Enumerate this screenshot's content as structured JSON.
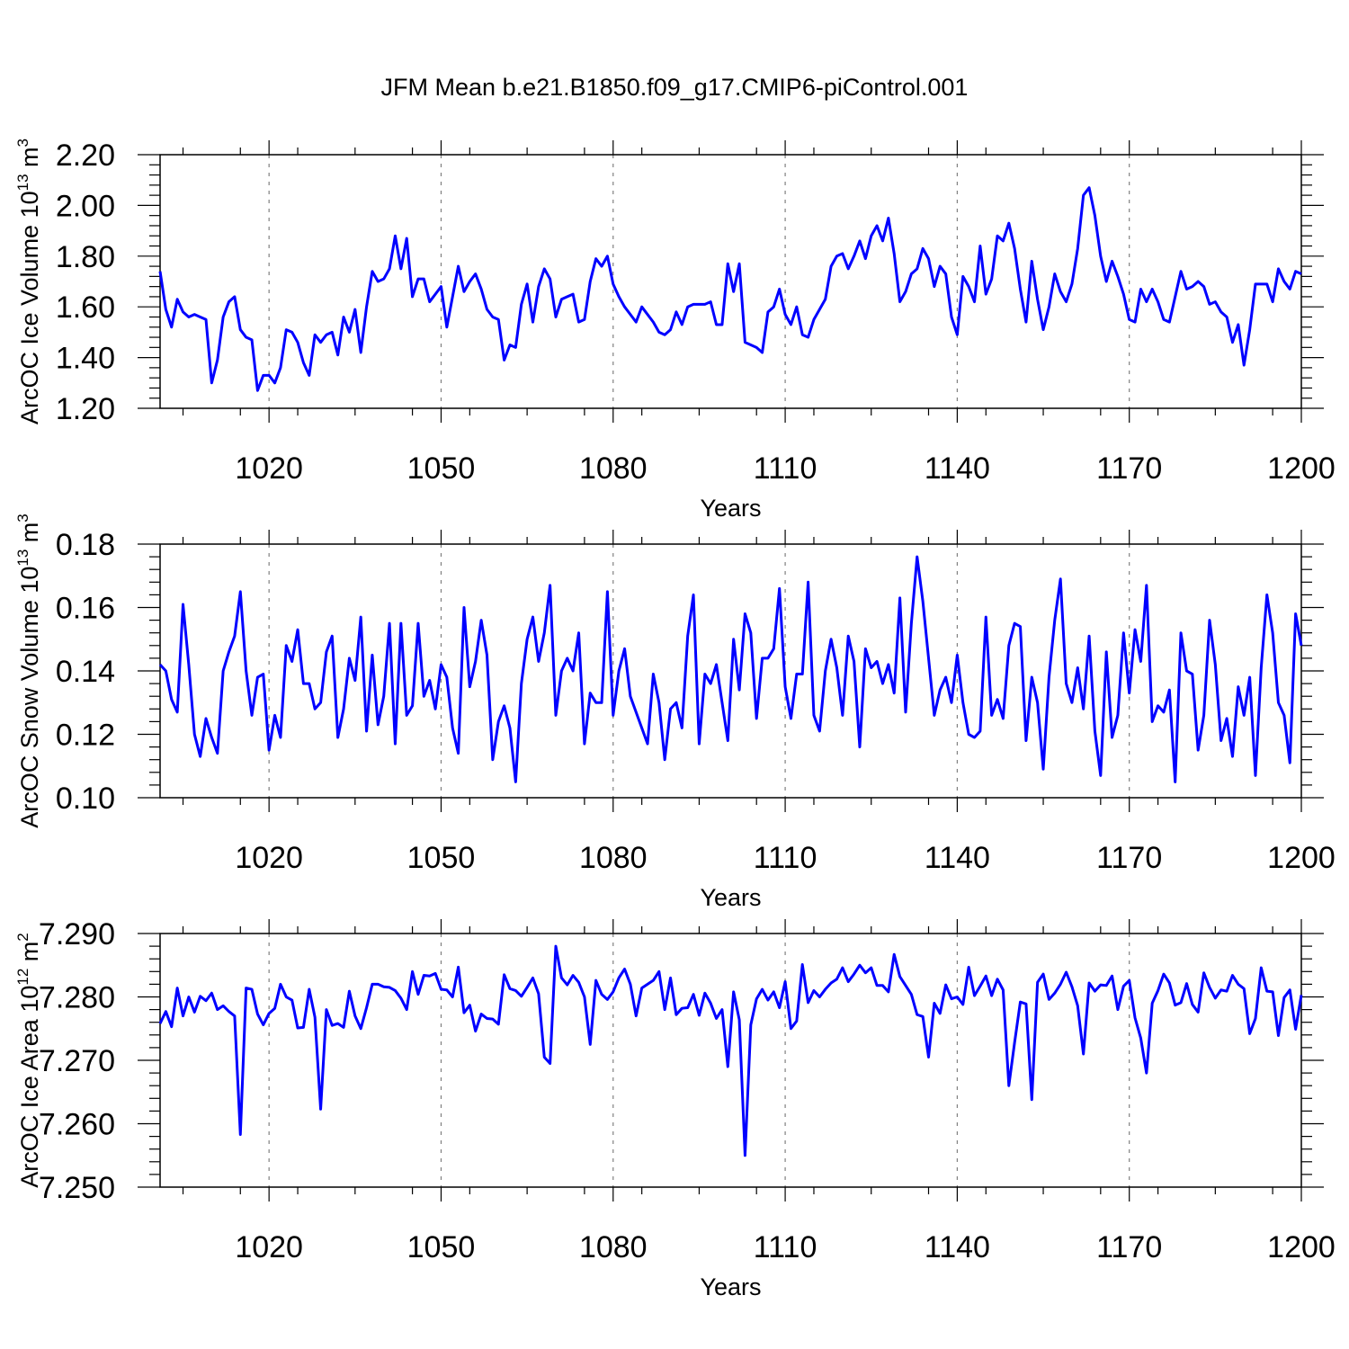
{
  "title": "JFM Mean b.e21.B1850.f09_g17.CMIP6-piControl.001",
  "colors": {
    "line": "#0000ff",
    "grid": "#808080",
    "axis": "#000000"
  },
  "chart_data": [
    {
      "type": "line",
      "xlabel": "Years",
      "ylabel": {
        "text": "ArcOC Ice Volume 10",
        "exp": "13",
        "unit": " m",
        "unit_exp": "3"
      },
      "xlim": [
        1001,
        1200
      ],
      "ylim": [
        1.2,
        2.2
      ],
      "xticks": [
        1020,
        1050,
        1080,
        1110,
        1140,
        1170,
        1200
      ],
      "xtick_labels": [
        "1020",
        "1050",
        "1080",
        "1110",
        "1140",
        "1170",
        "1200"
      ],
      "yticks": [
        1.2,
        1.4,
        1.6,
        1.8,
        2.0,
        2.2
      ],
      "ytick_labels": [
        "1.20",
        "1.40",
        "1.60",
        "1.80",
        "2.00",
        "2.20"
      ],
      "grid": "x-dashed",
      "series": [
        {
          "x_start": 1001,
          "values": [
            1.74,
            1.59,
            1.52,
            1.63,
            1.58,
            1.56,
            1.57,
            1.56,
            1.55,
            1.3,
            1.39,
            1.56,
            1.62,
            1.64,
            1.51,
            1.48,
            1.47,
            1.27,
            1.33,
            1.33,
            1.3,
            1.36,
            1.51,
            1.5,
            1.46,
            1.38,
            1.33,
            1.49,
            1.46,
            1.49,
            1.5,
            1.41,
            1.56,
            1.5,
            1.59,
            1.42,
            1.6,
            1.74,
            1.7,
            1.71,
            1.75,
            1.88,
            1.75,
            1.87,
            1.64,
            1.71,
            1.71,
            1.62,
            1.65,
            1.68,
            1.52,
            1.64,
            1.76,
            1.66,
            1.7,
            1.73,
            1.67,
            1.59,
            1.56,
            1.55,
            1.39,
            1.45,
            1.44,
            1.61,
            1.69,
            1.54,
            1.68,
            1.75,
            1.71,
            1.56,
            1.63,
            1.64,
            1.65,
            1.54,
            1.55,
            1.7,
            1.79,
            1.76,
            1.8,
            1.69,
            1.64,
            1.6,
            1.57,
            1.54,
            1.6,
            1.57,
            1.54,
            1.5,
            1.49,
            1.51,
            1.58,
            1.53,
            1.6,
            1.61,
            1.61,
            1.61,
            1.62,
            1.53,
            1.53,
            1.77,
            1.66,
            1.77,
            1.46,
            1.45,
            1.44,
            1.42,
            1.58,
            1.6,
            1.67,
            1.57,
            1.53,
            1.6,
            1.49,
            1.48,
            1.55,
            1.59,
            1.63,
            1.76,
            1.8,
            1.81,
            1.75,
            1.8,
            1.86,
            1.79,
            1.88,
            1.92,
            1.86,
            1.95,
            1.81,
            1.62,
            1.66,
            1.73,
            1.75,
            1.83,
            1.79,
            1.68,
            1.76,
            1.73,
            1.56,
            1.49,
            1.72,
            1.68,
            1.62,
            1.84,
            1.65,
            1.71,
            1.88,
            1.86,
            1.93,
            1.83,
            1.67,
            1.54,
            1.78,
            1.63,
            1.51,
            1.6,
            1.73,
            1.66,
            1.62,
            1.69,
            1.83,
            2.04,
            2.07,
            1.96,
            1.8,
            1.7,
            1.78,
            1.72,
            1.65,
            1.55,
            1.54,
            1.67,
            1.62,
            1.67,
            1.62,
            1.55,
            1.54,
            1.64,
            1.74,
            1.67,
            1.68,
            1.7,
            1.68,
            1.61,
            1.62,
            1.58,
            1.56,
            1.46,
            1.53,
            1.37,
            1.51,
            1.69,
            1.69,
            1.69,
            1.62,
            1.75,
            1.7,
            1.67,
            1.74,
            1.73
          ]
        }
      ]
    },
    {
      "type": "line",
      "xlabel": "Years",
      "ylabel": {
        "text": "ArcOC Snow Volume 10",
        "exp": "13",
        "unit": " m",
        "unit_exp": "3"
      },
      "xlim": [
        1001,
        1200
      ],
      "ylim": [
        0.1,
        0.18
      ],
      "xticks": [
        1020,
        1050,
        1080,
        1110,
        1140,
        1170,
        1200
      ],
      "xtick_labels": [
        "1020",
        "1050",
        "1080",
        "1110",
        "1140",
        "1170",
        "1200"
      ],
      "yticks": [
        0.1,
        0.12,
        0.14,
        0.16,
        0.18
      ],
      "ytick_labels": [
        "0.10",
        "0.12",
        "0.14",
        "0.16",
        "0.18"
      ],
      "grid": "x-dashed",
      "series": [
        {
          "x_start": 1001,
          "values": [
            0.142,
            0.14,
            0.131,
            0.127,
            0.161,
            0.142,
            0.12,
            0.113,
            0.125,
            0.119,
            0.114,
            0.14,
            0.146,
            0.151,
            0.165,
            0.14,
            0.126,
            0.138,
            0.139,
            0.115,
            0.126,
            0.119,
            0.148,
            0.143,
            0.153,
            0.136,
            0.136,
            0.128,
            0.13,
            0.146,
            0.151,
            0.119,
            0.128,
            0.144,
            0.137,
            0.157,
            0.121,
            0.145,
            0.123,
            0.132,
            0.155,
            0.117,
            0.155,
            0.126,
            0.129,
            0.155,
            0.132,
            0.137,
            0.128,
            0.142,
            0.138,
            0.122,
            0.114,
            0.16,
            0.135,
            0.143,
            0.156,
            0.145,
            0.112,
            0.124,
            0.129,
            0.122,
            0.105,
            0.136,
            0.15,
            0.157,
            0.143,
            0.152,
            0.167,
            0.126,
            0.14,
            0.144,
            0.14,
            0.152,
            0.117,
            0.133,
            0.13,
            0.13,
            0.165,
            0.126,
            0.14,
            0.147,
            0.132,
            0.127,
            0.122,
            0.117,
            0.139,
            0.13,
            0.112,
            0.128,
            0.13,
            0.122,
            0.151,
            0.164,
            0.117,
            0.139,
            0.136,
            0.142,
            0.13,
            0.118,
            0.15,
            0.134,
            0.158,
            0.152,
            0.125,
            0.144,
            0.144,
            0.147,
            0.166,
            0.135,
            0.125,
            0.139,
            0.139,
            0.168,
            0.126,
            0.121,
            0.14,
            0.15,
            0.141,
            0.126,
            0.151,
            0.143,
            0.116,
            0.147,
            0.141,
            0.143,
            0.136,
            0.142,
            0.133,
            0.163,
            0.127,
            0.155,
            0.176,
            0.162,
            0.144,
            0.126,
            0.134,
            0.138,
            0.13,
            0.145,
            0.13,
            0.12,
            0.119,
            0.121,
            0.157,
            0.126,
            0.131,
            0.125,
            0.148,
            0.155,
            0.154,
            0.118,
            0.138,
            0.13,
            0.109,
            0.138,
            0.156,
            0.169,
            0.136,
            0.13,
            0.141,
            0.128,
            0.151,
            0.121,
            0.107,
            0.146,
            0.119,
            0.126,
            0.152,
            0.133,
            0.153,
            0.143,
            0.167,
            0.124,
            0.129,
            0.127,
            0.134,
            0.105,
            0.152,
            0.14,
            0.139,
            0.115,
            0.126,
            0.156,
            0.142,
            0.118,
            0.125,
            0.113,
            0.135,
            0.126,
            0.138,
            0.107,
            0.141,
            0.164,
            0.152,
            0.13,
            0.126,
            0.111,
            0.158,
            0.148
          ]
        }
      ]
    },
    {
      "type": "line",
      "xlabel": "Years",
      "ylabel": {
        "text": "ArcOC Ice Area 10",
        "exp": "12",
        "unit": " m",
        "unit_exp": "2"
      },
      "xlim": [
        1001,
        1200
      ],
      "ylim": [
        7.25,
        7.29
      ],
      "xticks": [
        1020,
        1050,
        1080,
        1110,
        1140,
        1170,
        1200
      ],
      "xtick_labels": [
        "1020",
        "1050",
        "1080",
        "1110",
        "1140",
        "1170",
        "1200"
      ],
      "yticks": [
        7.25,
        7.26,
        7.27,
        7.28,
        7.29
      ],
      "ytick_labels": [
        "7.250",
        "7.260",
        "7.270",
        "7.280",
        "7.290"
      ],
      "grid": "x-dashed",
      "series": [
        {
          "x_start": 1001,
          "values": [
            7.2758,
            7.2777,
            7.2753,
            7.2814,
            7.277,
            7.28,
            7.2776,
            7.2801,
            7.2794,
            7.2806,
            7.278,
            7.2786,
            7.2777,
            7.277,
            7.2583,
            7.2814,
            7.2812,
            7.2773,
            7.2756,
            7.2774,
            7.2782,
            7.282,
            7.28,
            7.2795,
            7.2751,
            7.2752,
            7.2812,
            7.2768,
            7.2623,
            7.278,
            7.2755,
            7.2758,
            7.2752,
            7.2809,
            7.277,
            7.275,
            7.2783,
            7.282,
            7.282,
            7.2816,
            7.2815,
            7.281,
            7.2798,
            7.278,
            7.284,
            7.2804,
            7.2834,
            7.2833,
            7.2837,
            7.2812,
            7.2811,
            7.28,
            7.2847,
            7.2775,
            7.2787,
            7.2746,
            7.2773,
            7.2766,
            7.2765,
            7.2757,
            7.2835,
            7.2813,
            7.281,
            7.2801,
            7.2815,
            7.283,
            7.2805,
            7.2705,
            7.2695,
            7.288,
            7.283,
            7.2819,
            7.2834,
            7.2823,
            7.28,
            7.2725,
            7.2826,
            7.2804,
            7.2796,
            7.2808,
            7.283,
            7.2844,
            7.282,
            7.277,
            7.2814,
            7.282,
            7.2826,
            7.284,
            7.278,
            7.283,
            7.2772,
            7.2782,
            7.2783,
            7.2804,
            7.2771,
            7.2806,
            7.279,
            7.2766,
            7.278,
            7.269,
            7.2808,
            7.2764,
            7.255,
            7.2756,
            7.2797,
            7.2812,
            7.2795,
            7.2808,
            7.2783,
            7.2824,
            7.275,
            7.2762,
            7.2851,
            7.2791,
            7.281,
            7.28,
            7.2812,
            7.2822,
            7.2828,
            7.2846,
            7.2824,
            7.2836,
            7.285,
            7.2838,
            7.2846,
            7.2818,
            7.2818,
            7.2808,
            7.2867,
            7.2832,
            7.2818,
            7.2804,
            7.2772,
            7.2769,
            7.2705,
            7.279,
            7.2774,
            7.2819,
            7.2797,
            7.28,
            7.2788,
            7.2847,
            7.2802,
            7.2817,
            7.2833,
            7.2802,
            7.2828,
            7.2811,
            7.266,
            7.2728,
            7.2792,
            7.2789,
            7.2638,
            7.2823,
            7.2836,
            7.2796,
            7.2806,
            7.282,
            7.2839,
            7.2816,
            7.2786,
            7.271,
            7.2822,
            7.2809,
            7.2819,
            7.2818,
            7.2833,
            7.278,
            7.2817,
            7.2826,
            7.2767,
            7.2735,
            7.268,
            7.279,
            7.281,
            7.2836,
            7.2822,
            7.2787,
            7.2791,
            7.2821,
            7.2788,
            7.2776,
            7.2838,
            7.2815,
            7.2798,
            7.2811,
            7.2809,
            7.2834,
            7.282,
            7.2813,
            7.2742,
            7.2766,
            7.2846,
            7.2809,
            7.2808,
            7.2739,
            7.2799,
            7.2811,
            7.2749,
            7.2803
          ]
        }
      ]
    }
  ]
}
